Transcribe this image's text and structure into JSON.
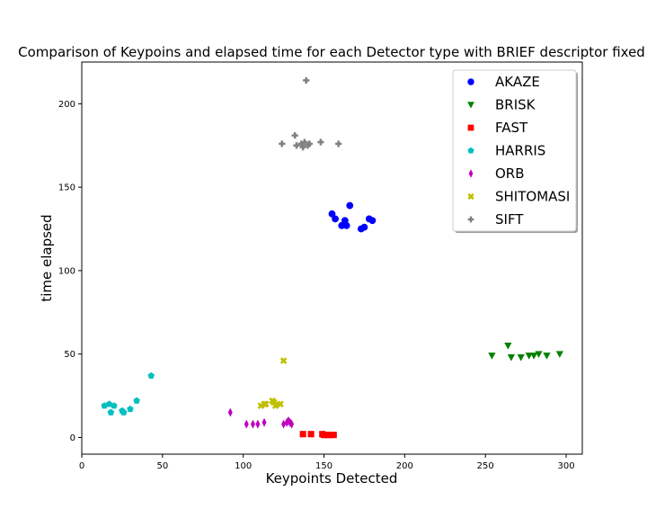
{
  "chart_data": {
    "type": "scatter",
    "title": "Comparison of Keypoins and elapsed time for each Detector type with BRIEF descriptor fixed",
    "xlabel": "Keypoints Detected",
    "ylabel": "time elapsed",
    "xlim": [
      0,
      310
    ],
    "ylim": [
      -10,
      225
    ],
    "xticks": [
      0,
      50,
      100,
      150,
      200,
      250,
      300
    ],
    "yticks": [
      0,
      50,
      100,
      150,
      200
    ],
    "grid": false,
    "legend_position": "top-right",
    "series": [
      {
        "name": "AKAZE",
        "marker": "circle",
        "color": "#0000ff",
        "x": [
          155,
          157,
          161,
          163,
          164,
          166,
          173,
          175,
          178,
          180
        ],
        "y": [
          134,
          131,
          127,
          130,
          127,
          139,
          125,
          126,
          131,
          130
        ]
      },
      {
        "name": "BRISK",
        "marker": "triangle-down",
        "color": "#008000",
        "x": [
          254,
          264,
          266,
          272,
          277,
          280,
          283,
          288,
          296
        ],
        "y": [
          49,
          55,
          48,
          48,
          49,
          49,
          50,
          49,
          50
        ]
      },
      {
        "name": "FAST",
        "marker": "square",
        "color": "#ff0000",
        "x": [
          137,
          142,
          149,
          150,
          152,
          154,
          156
        ],
        "y": [
          2,
          2,
          2,
          1.5,
          1.5,
          1.5,
          1.5
        ]
      },
      {
        "name": "HARRIS",
        "marker": "pentagon",
        "color": "#00bfbf",
        "x": [
          14,
          17,
          18,
          20,
          25,
          26,
          30,
          34,
          43
        ],
        "y": [
          19,
          20,
          15,
          19,
          16,
          15,
          17,
          22,
          37
        ]
      },
      {
        "name": "ORB",
        "marker": "thin-diamond",
        "color": "#bf00bf",
        "x": [
          92,
          102,
          106,
          109,
          113,
          125,
          127,
          128,
          129,
          130
        ],
        "y": [
          15,
          8,
          8,
          8,
          9,
          8,
          9,
          10,
          9,
          8
        ]
      },
      {
        "name": "SHITOMASI",
        "marker": "x-filled",
        "color": "#bfbf00",
        "x": [
          111,
          113,
          114,
          118,
          119,
          120,
          121,
          123,
          125
        ],
        "y": [
          19,
          20,
          20,
          22,
          21,
          19,
          20,
          20,
          46
        ]
      },
      {
        "name": "SIFT",
        "marker": "plus-filled",
        "color": "#808080",
        "x": [
          124,
          132,
          133,
          136,
          137,
          138,
          139,
          140,
          141,
          148,
          159
        ],
        "y": [
          176,
          181,
          175,
          176,
          174,
          177,
          214,
          175,
          176,
          177,
          176
        ]
      }
    ]
  }
}
